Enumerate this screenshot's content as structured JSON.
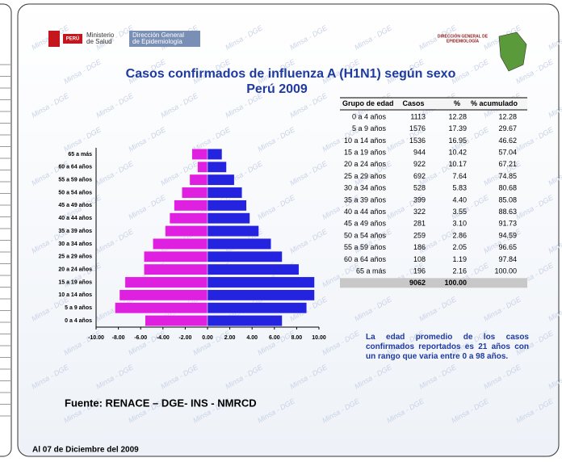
{
  "logo": {
    "country": "PERÚ",
    "ministry": [
      "Ministerio",
      "de Salud"
    ],
    "directorate": [
      "Dirección General",
      "de Epidemiología"
    ],
    "right": [
      "DIRECCIÓN GENERAL DE",
      "EPIDEMIOLOGÍA"
    ],
    "watermark": "Minsa - DGE"
  },
  "chart_data": {
    "type": "pyramid",
    "title": [
      "Casos confirmados de influenza A (H1N1) según sexo",
      "Perú 2009"
    ],
    "categories": [
      "0 a 4 años",
      "5 a 9 años",
      "10 a 14 años",
      "15 a 19 años",
      "20 a 24 años",
      "25 a 29 años",
      "30 a 34 años",
      "35 a 39 años",
      "40 a 44 años",
      "45 a 49 años",
      "50 a 54 años",
      "55 a 59 años",
      "60 a 64 años",
      "65 a más"
    ],
    "series": [
      {
        "color": "#e020e0",
        "values": [
          -5.6,
          -8.3,
          -7.9,
          -7.4,
          -5.7,
          -5.7,
          -4.9,
          -3.8,
          -3.4,
          -3.0,
          -2.3,
          -1.6,
          -0.9,
          -1.4
        ]
      },
      {
        "color": "#2424e0",
        "values": [
          6.7,
          8.9,
          9.6,
          9.6,
          8.2,
          6.7,
          5.7,
          4.6,
          3.8,
          3.5,
          3.1,
          2.4,
          1.7,
          1.3
        ]
      }
    ],
    "xlim": [
      -10,
      10
    ],
    "xticks": [
      {
        "value": -10,
        "label": "-10.00"
      },
      {
        "value": -8,
        "label": "-8.00"
      },
      {
        "value": -6,
        "label": "-6.00"
      },
      {
        "value": -4,
        "label": "-4.00"
      },
      {
        "value": -2,
        "label": "-2.00"
      },
      {
        "value": 0,
        "label": "0.00"
      },
      {
        "value": 2,
        "label": "2.00"
      },
      {
        "value": 4,
        "label": "4.00"
      },
      {
        "value": 6,
        "label": "6.00"
      },
      {
        "value": 8,
        "label": "8.00"
      },
      {
        "value": 10,
        "label": "10.00"
      }
    ]
  },
  "table": {
    "header": [
      "Grupo de edad",
      "Casos",
      "%",
      "% acumulado"
    ],
    "rows": [
      [
        "0 a 4 años",
        "1113",
        "12.28",
        "12.28"
      ],
      [
        "5 a 9 años",
        "1576",
        "17.39",
        "29.67"
      ],
      [
        "10 a 14 años",
        "1536",
        "16.95",
        "46.62"
      ],
      [
        "15 a 19 años",
        "944",
        "10.42",
        "57.04"
      ],
      [
        "20 a 24 años",
        "922",
        "10.17",
        "67.21"
      ],
      [
        "25 a 29 años",
        "692",
        "7.64",
        "74.85"
      ],
      [
        "30 a 34 años",
        "528",
        "5.83",
        "80.68"
      ],
      [
        "35 a 39 años",
        "399",
        "4.40",
        "85.08"
      ],
      [
        "40 a 44 años",
        "322",
        "3.55",
        "88.63"
      ],
      [
        "45 a 49 años",
        "281",
        "3.10",
        "91.73"
      ],
      [
        "50 a 54 años",
        "259",
        "2.86",
        "94.59"
      ],
      [
        "55 a 59 años",
        "186",
        "2.05",
        "96.65"
      ],
      [
        "60 a 64 años",
        "108",
        "1.19",
        "97.84"
      ],
      [
        "65 a más",
        "196",
        "2.16",
        "100.00"
      ]
    ],
    "total": [
      "9062",
      "100.00"
    ]
  },
  "note": "La edad promedio de los casos confirmados reportados es 21 años con un rango que varia entre 0 a 98 años.",
  "source": "Fuente: RENACE – DGE- INS - NMRCD",
  "date": "Al 07 de Diciembre del 2009"
}
